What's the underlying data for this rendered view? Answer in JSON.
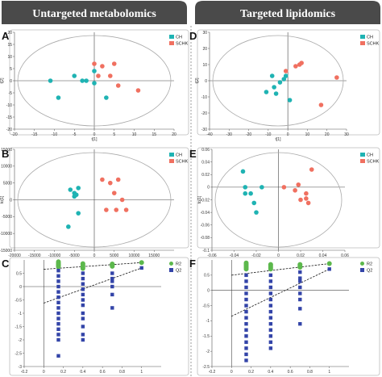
{
  "headers": {
    "left": "Untargeted metabolomics",
    "right": "Targeted lipidomics"
  },
  "colors": {
    "CH": "#1fb3b3",
    "SCHK": "#f07060",
    "R2": "#5cb84c",
    "Q2": "#3344a8",
    "header_bg": "#4a4a4a",
    "panel_border": "#bbbbbb"
  },
  "chart_data": [
    {
      "panel": "A",
      "type": "scatter",
      "title": "",
      "xlabel": "t[1]",
      "ylabel": "t[2]",
      "xlim": [
        -20,
        20
      ],
      "ylim": [
        -20,
        20
      ],
      "xticks": [
        "-20",
        "-15",
        "-10",
        "-5",
        "0",
        "5",
        "10",
        "15",
        "20"
      ],
      "yticks": [
        "-20",
        "-15",
        "-10",
        "-5",
        "0",
        "5",
        "10",
        "15",
        "20"
      ],
      "legend": [
        "CH",
        "SCHK"
      ],
      "legend_position": "top-right",
      "series": [
        {
          "name": "CH",
          "points": [
            [
              -11,
              0
            ],
            [
              -9,
              -7
            ],
            [
              -5,
              2
            ],
            [
              -3,
              0
            ],
            [
              -2,
              0
            ],
            [
              0,
              -1
            ],
            [
              0,
              4
            ],
            [
              3,
              -7
            ]
          ]
        },
        {
          "name": "SCHK",
          "points": [
            [
              0,
              7
            ],
            [
              1,
              2
            ],
            [
              2,
              6
            ],
            [
              4,
              2
            ],
            [
              5,
              7
            ],
            [
              6,
              -2
            ],
            [
              11,
              -4
            ]
          ]
        }
      ]
    },
    {
      "panel": "B",
      "type": "scatter",
      "title": "",
      "xlabel": "t[1]",
      "ylabel": "to[1]",
      "xlim": [
        -20000,
        20000
      ],
      "ylim": [
        -15000,
        15000
      ],
      "xticks": [
        "-20000",
        "-15000",
        "-10000",
        "-5000",
        "0",
        "5000",
        "10000",
        "15000"
      ],
      "yticks": [
        "-15000",
        "-10000",
        "-5000",
        "0",
        "5000",
        "10000",
        "15000"
      ],
      "legend": [
        "CH",
        "SCHK"
      ],
      "legend_position": "top-right",
      "series": [
        {
          "name": "CH",
          "points": [
            [
              -6500,
              -8000
            ],
            [
              -6000,
              3000
            ],
            [
              -5000,
              2000
            ],
            [
              -5000,
              1000
            ],
            [
              -4500,
              1500
            ],
            [
              -4000,
              3500
            ],
            [
              -4000,
              -4000
            ]
          ]
        },
        {
          "name": "SCHK",
          "points": [
            [
              2000,
              6000
            ],
            [
              3000,
              -3000
            ],
            [
              4000,
              5000
            ],
            [
              5000,
              2000
            ],
            [
              5500,
              -3000
            ],
            [
              6000,
              6000
            ],
            [
              7000,
              0
            ],
            [
              8000,
              -3000
            ]
          ]
        }
      ]
    },
    {
      "panel": "C",
      "type": "scatter",
      "title": "",
      "xlabel": "",
      "ylabel": "",
      "xlim": [
        -0.2,
        1.2
      ],
      "ylim": [
        -3,
        1
      ],
      "xticks": [
        "-0.2",
        "0",
        "0.2",
        "0.4",
        "0.6",
        "0.8",
        "1"
      ],
      "yticks": [
        "-3",
        "-2.5",
        "-2",
        "-1.5",
        "-1",
        "-0.5",
        "0",
        "0.5"
      ],
      "legend": [
        "R2",
        "Q2"
      ],
      "legend_position": "right",
      "series": [
        {
          "name": "R2",
          "points": [
            [
              0.15,
              0.93
            ],
            [
              0.15,
              0.88
            ],
            [
              0.15,
              0.85
            ],
            [
              0.15,
              0.82
            ],
            [
              0.15,
              0.8
            ],
            [
              0.15,
              0.75
            ],
            [
              0.4,
              0.86
            ],
            [
              0.4,
              0.8
            ],
            [
              0.4,
              0.74
            ],
            [
              0.4,
              0.68
            ],
            [
              0.7,
              0.85
            ],
            [
              0.7,
              0.8
            ],
            [
              0.7,
              0.76
            ],
            [
              1,
              0.9
            ]
          ]
        },
        {
          "name": "Q2",
          "points": [
            [
              0.15,
              0.6
            ],
            [
              0.15,
              0.4
            ],
            [
              0.15,
              0.2
            ],
            [
              0.15,
              0.0
            ],
            [
              0.15,
              -0.2
            ],
            [
              0.15,
              -0.4
            ],
            [
              0.15,
              -0.6
            ],
            [
              0.15,
              -0.8
            ],
            [
              0.15,
              -1.0
            ],
            [
              0.15,
              -1.2
            ],
            [
              0.15,
              -1.4
            ],
            [
              0.15,
              -1.6
            ],
            [
              0.15,
              -1.8
            ],
            [
              0.15,
              -2.0
            ],
            [
              0.15,
              -2.6
            ],
            [
              0.4,
              0.5
            ],
            [
              0.4,
              0.3
            ],
            [
              0.4,
              0.1
            ],
            [
              0.4,
              -0.1
            ],
            [
              0.4,
              -0.3
            ],
            [
              0.4,
              -0.5
            ],
            [
              0.4,
              -0.7
            ],
            [
              0.4,
              -1.0
            ],
            [
              0.4,
              -1.2
            ],
            [
              0.4,
              -1.5
            ],
            [
              0.4,
              -1.8
            ],
            [
              0.4,
              -2.0
            ],
            [
              0.7,
              0.5
            ],
            [
              0.7,
              0.3
            ],
            [
              0.7,
              0.2
            ],
            [
              0.7,
              0.0
            ],
            [
              0.7,
              -0.3
            ],
            [
              0.7,
              -0.8
            ],
            [
              1,
              0.7
            ]
          ]
        }
      ],
      "regression_lines": [
        {
          "name": "R2",
          "from": [
            0,
            0.65
          ],
          "to": [
            1,
            0.9
          ]
        },
        {
          "name": "Q2",
          "from": [
            0,
            -0.62
          ],
          "to": [
            1,
            0.7
          ]
        }
      ]
    },
    {
      "panel": "D",
      "type": "scatter",
      "title": "",
      "xlabel": "t[1]",
      "ylabel": "t[2]",
      "xlim": [
        -40,
        30
      ],
      "ylim": [
        -30,
        30
      ],
      "xticks": [
        "-40",
        "-30",
        "-20",
        "-10",
        "0",
        "10",
        "20",
        "30"
      ],
      "yticks": [
        "-30",
        "-20",
        "-10",
        "0",
        "10",
        "20",
        "30"
      ],
      "legend": [
        "CH",
        "SCHK"
      ],
      "legend_position": "top-right",
      "series": [
        {
          "name": "CH",
          "points": [
            [
              -11,
              -7
            ],
            [
              -8,
              3
            ],
            [
              -7,
              -4
            ],
            [
              -6,
              -8
            ],
            [
              -4,
              -1
            ],
            [
              -2,
              1
            ],
            [
              -1,
              3
            ],
            [
              1,
              -12
            ]
          ]
        },
        {
          "name": "SCHK",
          "points": [
            [
              -1,
              6
            ],
            [
              4,
              9
            ],
            [
              6,
              10
            ],
            [
              7,
              11
            ],
            [
              17,
              -15
            ],
            [
              25,
              2
            ]
          ]
        }
      ]
    },
    {
      "panel": "E",
      "type": "scatter",
      "title": "",
      "xlabel": "t[1]",
      "ylabel": "to[1]",
      "xlim": [
        -0.06,
        0.06
      ],
      "ylim": [
        -0.1,
        0.06
      ],
      "xticks": [
        "-0.06",
        "-0.04",
        "-0.02",
        "0",
        "0.02",
        "0.04",
        "0.06"
      ],
      "yticks": [
        "-0.1",
        "-0.08",
        "-0.06",
        "-0.04",
        "-0.02",
        "0",
        "0.02",
        "0.04",
        "0.06"
      ],
      "legend": [
        "CH",
        "SCHK"
      ],
      "legend_position": "top-right",
      "series": [
        {
          "name": "CH",
          "points": [
            [
              -0.032,
              0.025
            ],
            [
              -0.03,
              0.0
            ],
            [
              -0.03,
              -0.01
            ],
            [
              -0.025,
              -0.01
            ],
            [
              -0.022,
              -0.025
            ],
            [
              -0.02,
              -0.04
            ],
            [
              -0.015,
              0.0
            ]
          ]
        },
        {
          "name": "SCHK",
          "points": [
            [
              0.005,
              0.0
            ],
            [
              0.015,
              -0.005
            ],
            [
              0.018,
              0.004
            ],
            [
              0.02,
              -0.02
            ],
            [
              0.025,
              -0.018
            ],
            [
              0.025,
              -0.01
            ],
            [
              0.027,
              -0.025
            ],
            [
              0.03,
              0.028
            ]
          ]
        }
      ]
    },
    {
      "panel": "F",
      "type": "scatter",
      "title": "",
      "xlabel": "",
      "ylabel": "",
      "xlim": [
        -0.2,
        1.2
      ],
      "ylim": [
        -2.5,
        1
      ],
      "xticks": [
        "-0.2",
        "0",
        "0.2",
        "0.4",
        "0.6",
        "0.8",
        "1"
      ],
      "yticks": [
        "-2.5",
        "-2",
        "-1.5",
        "-1",
        "-0.5",
        "0",
        "0.5"
      ],
      "legend": [
        "R2",
        "Q2"
      ],
      "legend_position": "right",
      "series": [
        {
          "name": "R2",
          "points": [
            [
              0.15,
              0.9
            ],
            [
              0.15,
              0.85
            ],
            [
              0.15,
              0.8
            ],
            [
              0.15,
              0.75
            ],
            [
              0.15,
              0.7
            ],
            [
              0.4,
              0.85
            ],
            [
              0.4,
              0.8
            ],
            [
              0.4,
              0.75
            ],
            [
              0.4,
              0.7
            ],
            [
              0.7,
              0.85
            ],
            [
              0.7,
              0.8
            ],
            [
              0.7,
              0.76
            ],
            [
              1,
              0.88
            ]
          ]
        },
        {
          "name": "Q2",
          "points": [
            [
              0.15,
              0.5
            ],
            [
              0.15,
              0.3
            ],
            [
              0.15,
              0.1
            ],
            [
              0.15,
              -0.1
            ],
            [
              0.15,
              -0.3
            ],
            [
              0.15,
              -0.5
            ],
            [
              0.15,
              -0.7
            ],
            [
              0.15,
              -0.9
            ],
            [
              0.15,
              -1.1
            ],
            [
              0.15,
              -1.3
            ],
            [
              0.15,
              -1.5
            ],
            [
              0.15,
              -1.7
            ],
            [
              0.15,
              -1.9
            ],
            [
              0.15,
              -2.1
            ],
            [
              0.15,
              -2.3
            ],
            [
              0.4,
              0.5
            ],
            [
              0.4,
              0.3
            ],
            [
              0.4,
              0.1
            ],
            [
              0.4,
              -0.1
            ],
            [
              0.4,
              -0.3
            ],
            [
              0.4,
              -0.5
            ],
            [
              0.4,
              -0.7
            ],
            [
              0.4,
              -0.9
            ],
            [
              0.4,
              -1.1
            ],
            [
              0.4,
              -1.3
            ],
            [
              0.4,
              -1.5
            ],
            [
              0.4,
              -1.7
            ],
            [
              0.4,
              -1.9
            ],
            [
              0.7,
              0.6
            ],
            [
              0.7,
              0.4
            ],
            [
              0.7,
              0.3
            ],
            [
              0.7,
              0.1
            ],
            [
              0.7,
              -0.1
            ],
            [
              0.7,
              -0.3
            ],
            [
              0.7,
              -0.6
            ],
            [
              0.7,
              -1.1
            ],
            [
              1,
              0.7
            ]
          ]
        }
      ],
      "regression_lines": [
        {
          "name": "R2",
          "from": [
            0,
            0.5
          ],
          "to": [
            1,
            0.88
          ]
        },
        {
          "name": "Q2",
          "from": [
            0,
            -0.85
          ],
          "to": [
            1,
            0.7
          ]
        }
      ]
    }
  ]
}
